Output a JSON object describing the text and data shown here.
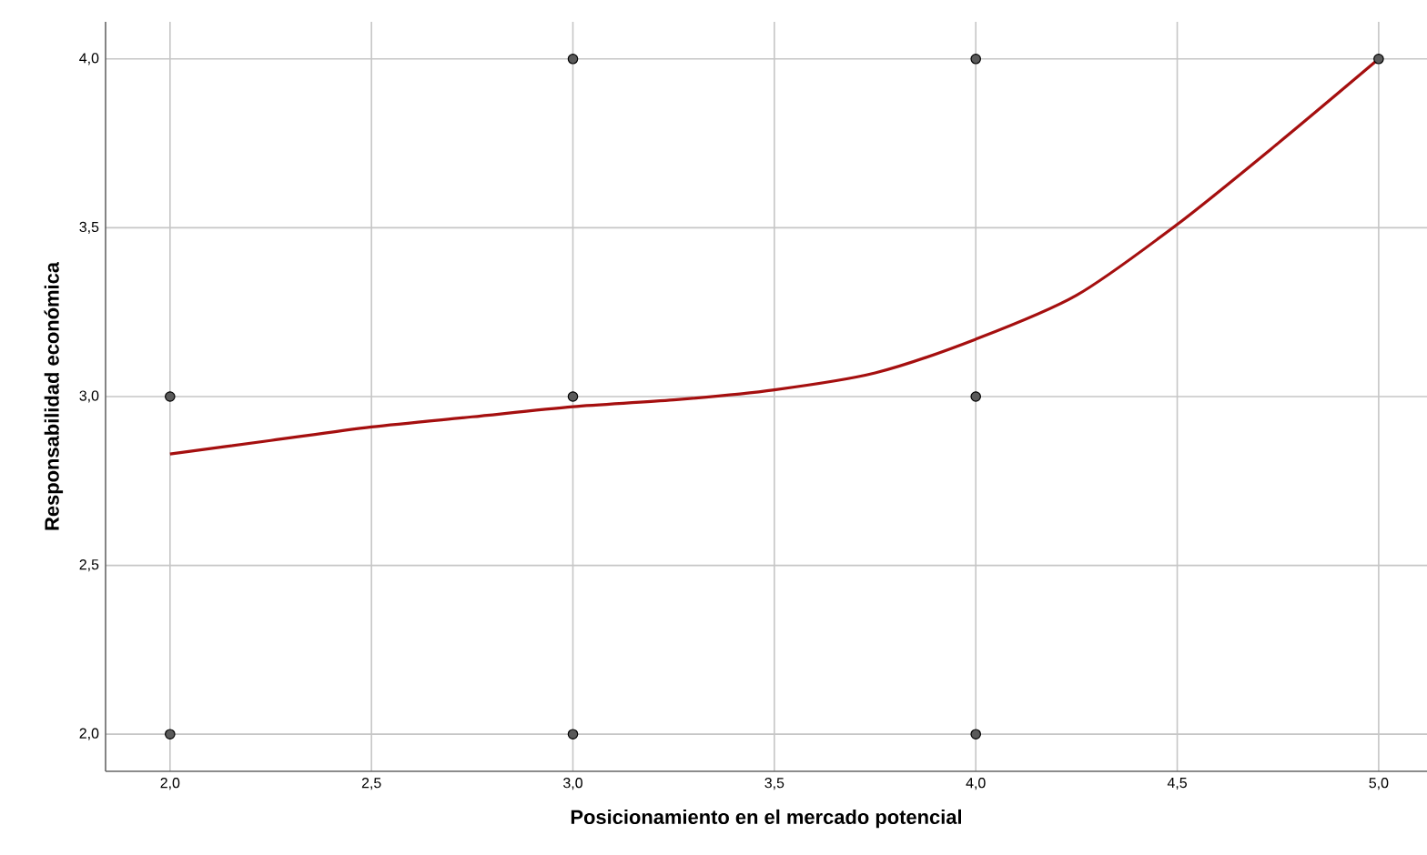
{
  "chart_data": {
    "type": "scatter",
    "xlabel": "Posicionamiento en el mercado potencial",
    "ylabel": "Responsabilidad económica",
    "xlim": [
      1.84,
      5.12
    ],
    "ylim": [
      1.89,
      4.11
    ],
    "xticks": [
      {
        "value": 2,
        "label": "2,0"
      },
      {
        "value": 2.5,
        "label": "2,5"
      },
      {
        "value": 3,
        "label": "3,0"
      },
      {
        "value": 3.5,
        "label": "3,5"
      },
      {
        "value": 4,
        "label": "4,0"
      },
      {
        "value": 4.5,
        "label": "4,5"
      },
      {
        "value": 5,
        "label": "5,0"
      }
    ],
    "yticks": [
      {
        "value": 2,
        "label": "2,0"
      },
      {
        "value": 2.5,
        "label": "2,5"
      },
      {
        "value": 3,
        "label": "3,0"
      },
      {
        "value": 3.5,
        "label": "3,5"
      },
      {
        "value": 4,
        "label": "4,0"
      }
    ],
    "grid": true,
    "marker": "circle",
    "series": [
      {
        "color": "#5a5a5a",
        "x": [
          2,
          2,
          3,
          3,
          3,
          4,
          4,
          4,
          5
        ],
        "values": [
          3,
          2,
          4,
          3,
          2,
          4,
          3,
          2,
          4
        ]
      },
      {
        "type": "line",
        "color": "#a50f0f",
        "line_style": "solid",
        "marker": "none",
        "x": [
          2,
          2.25,
          2.5,
          2.75,
          3,
          3.25,
          3.5,
          3.75,
          4,
          4.25,
          4.5,
          4.75,
          5
        ],
        "values": [
          2.83,
          2.87,
          2.91,
          2.94,
          2.97,
          2.99,
          3.02,
          3.07,
          3.17,
          3.3,
          3.51,
          3.75,
          4.0
        ]
      }
    ]
  }
}
